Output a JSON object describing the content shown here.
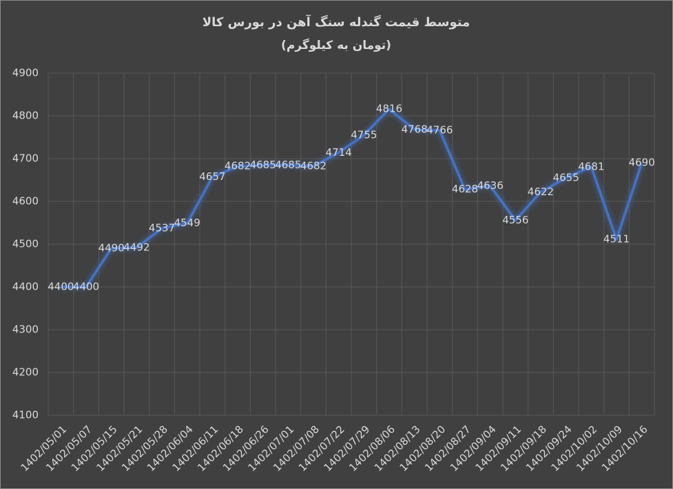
{
  "chart_data": {
    "type": "line",
    "title": "متوسط قیمت گندله سنگ آهن در بورس کالا",
    "subtitle": "(تومان به کیلوگرم)",
    "categories": [
      "1402/05/01",
      "1402/05/07",
      "1402/05/15",
      "1402/05/21",
      "1402/05/28",
      "1402/06/04",
      "1402/06/11",
      "1402/06/18",
      "1402/06/26",
      "1402/07/01",
      "1402/07/08",
      "1402/07/22",
      "1402/07/29",
      "1402/08/06",
      "1402/08/13",
      "1402/08/20",
      "1402/08/27",
      "1402/09/04",
      "1402/09/11",
      "1402/09/18",
      "1402/09/24",
      "1402/10/02",
      "1402/10/09",
      "1402/10/16"
    ],
    "values": [
      4400,
      4400,
      4490,
      4492,
      4537,
      4549,
      4657,
      4682,
      4685,
      4685,
      4682,
      4714,
      4755,
      4816,
      4768,
      4766,
      4628,
      4636,
      4556,
      4622,
      4655,
      4681,
      4511,
      4690
    ],
    "color": "#4472c4",
    "ylim": [
      4100,
      4900
    ],
    "yticks": [
      4100,
      4200,
      4300,
      4400,
      4500,
      4600,
      4700,
      4800,
      4900
    ],
    "grid": true
  }
}
